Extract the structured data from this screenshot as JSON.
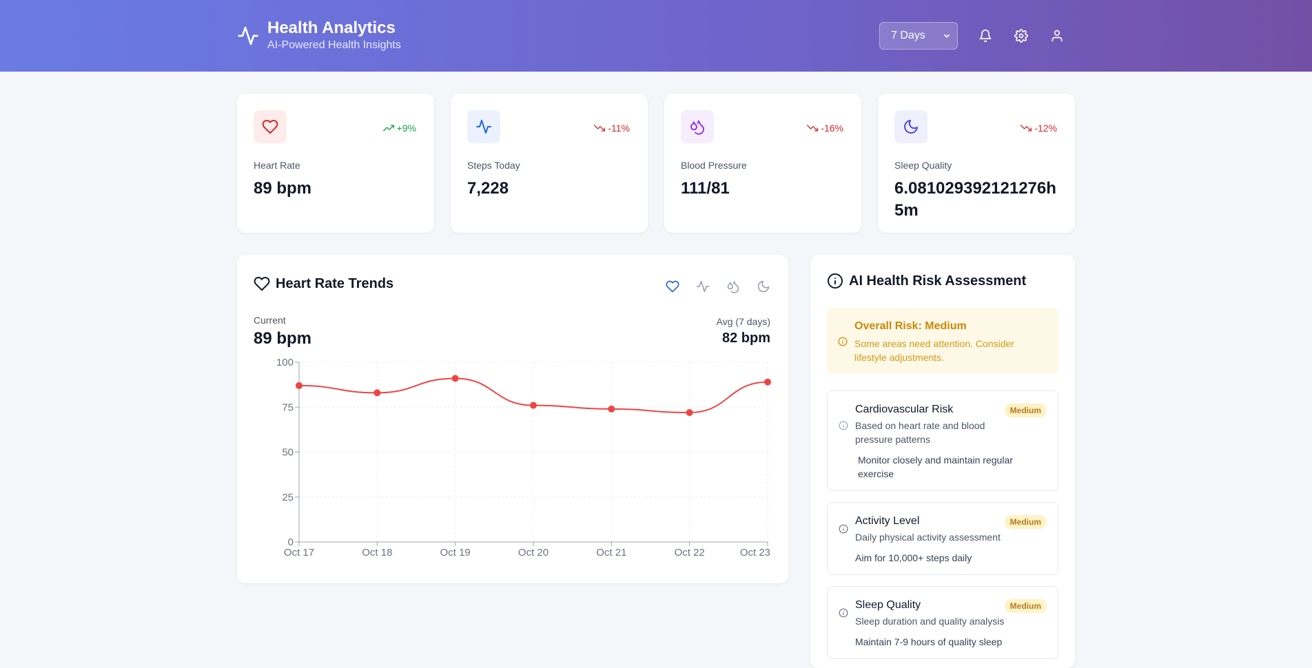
{
  "header": {
    "title": "Health Analytics",
    "subtitle": "AI-Powered Health Insights",
    "range": "7 Days"
  },
  "stats": [
    {
      "label": "Heart Rate",
      "value": "89 bpm",
      "change": "+9%",
      "trend": "up",
      "color": "#dc2626"
    },
    {
      "label": "Steps Today",
      "value": "7,228",
      "change": "-11%",
      "trend": "down",
      "color": "#2563eb"
    },
    {
      "label": "Blood Pressure",
      "value": "111/81",
      "change": "-16%",
      "trend": "down",
      "color": "#9333ea"
    },
    {
      "label": "Sleep Quality",
      "value": "6.081029392121276h 5m",
      "change": "-12%",
      "trend": "down",
      "color": "#4f46e5"
    }
  ],
  "trends": {
    "title": "Heart Rate Trends",
    "current_label": "Current",
    "current_value": "89 bpm",
    "avg_label": "Avg (7 days)",
    "avg_value": "82 bpm"
  },
  "chart_data": {
    "type": "line",
    "title": "Heart Rate Trends",
    "categories": [
      "Oct 17",
      "Oct 18",
      "Oct 19",
      "Oct 20",
      "Oct 21",
      "Oct 22",
      "Oct 23"
    ],
    "series": [
      {
        "name": "Heart Rate",
        "values": [
          87,
          83,
          91,
          76,
          74,
          72,
          89
        ],
        "color": "#ef4444"
      }
    ],
    "yticks": [
      0,
      25,
      50,
      75,
      100
    ],
    "ylim": [
      0,
      100
    ],
    "grid": true,
    "xlabel": "",
    "ylabel": ""
  },
  "risk": {
    "title": "AI Health Risk Assessment",
    "overall_title": "Overall Risk: Medium",
    "overall_desc": "Some areas need attention. Consider lifestyle adjustments.",
    "items": [
      {
        "name": "Cardiovascular Risk",
        "badge": "Medium",
        "sub": "Based on heart rate and blood pressure patterns",
        "advice": "Monitor closely and maintain regular exercise"
      },
      {
        "name": "Activity Level",
        "badge": "Medium",
        "sub": "Daily physical activity assessment",
        "advice": "Aim for 10,000+ steps daily"
      },
      {
        "name": "Sleep Quality",
        "badge": "Medium",
        "sub": "Sleep duration and quality analysis",
        "advice": "Maintain 7-9 hours of quality sleep"
      }
    ]
  }
}
